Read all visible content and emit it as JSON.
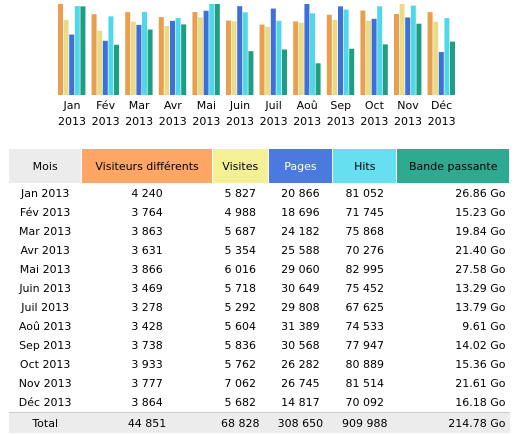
{
  "chart_data": {
    "type": "bar",
    "categories": [
      "Jan 2013",
      "Fév 2013",
      "Mar 2013",
      "Avr 2013",
      "Mai 2013",
      "Juin 2013",
      "Juil 2013",
      "Aoû 2013",
      "Sep 2013",
      "Oct 2013",
      "Nov 2013",
      "Déc 2013"
    ],
    "series": [
      {
        "name": "Visiteurs différents",
        "color": "#e8a050",
        "header_color": "#ffa566",
        "values": [
          4240,
          3764,
          3863,
          3631,
          3866,
          3469,
          3278,
          3428,
          3738,
          3933,
          3777,
          3864
        ],
        "value_labels": [
          "4 240",
          "3 764",
          "3 863",
          "3 631",
          "3 866",
          "3 469",
          "3 278",
          "3 428",
          "3 738",
          "3 933",
          "3 777",
          "3 864"
        ]
      },
      {
        "name": "Visites",
        "color": "#e8dc88",
        "header_color": "#f4f095",
        "values": [
          5827,
          4988,
          5687,
          5354,
          6016,
          5718,
          5292,
          5604,
          5836,
          5762,
          7062,
          5682
        ],
        "value_labels": [
          "5 827",
          "4 988",
          "5 687",
          "5 354",
          "6 016",
          "5 718",
          "5 292",
          "5 604",
          "5 836",
          "5 762",
          "7 062",
          "5 682"
        ]
      },
      {
        "name": "Pages",
        "color": "#3f6fd8",
        "header_color": "#4a7ae0",
        "values": [
          20866,
          18696,
          24182,
          25588,
          29060,
          30649,
          29808,
          31389,
          30568,
          26282,
          26745,
          14817
        ],
        "value_labels": [
          "20 866",
          "18 696",
          "24 182",
          "25 588",
          "29 060",
          "30 649",
          "29 808",
          "31 389",
          "30 568",
          "26 282",
          "26 745",
          "14 817"
        ]
      },
      {
        "name": "Hits",
        "color": "#50d8e8",
        "header_color": "#66e0f0",
        "values": [
          81052,
          71745,
          75868,
          70276,
          82995,
          75452,
          67625,
          74533,
          77947,
          80889,
          81514,
          70092
        ],
        "value_labels": [
          "81 052",
          "71 745",
          "75 868",
          "70 276",
          "82 995",
          "75 452",
          "67 625",
          "74 533",
          "77 947",
          "80 889",
          "81 514",
          "70 092"
        ]
      },
      {
        "name": "Bande passante",
        "color": "#1f9e82",
        "header_color": "#2eaa90",
        "values": [
          26.86,
          15.23,
          19.84,
          21.4,
          27.58,
          13.29,
          13.79,
          9.61,
          14.02,
          15.36,
          21.61,
          16.18
        ],
        "value_labels": [
          "26.86 Go",
          "15.23 Go",
          "19.84 Go",
          "21.40 Go",
          "27.58 Go",
          "13.29 Go",
          "13.79 Go",
          "9.61 Go",
          "14.02 Go",
          "15.36 Go",
          "21.61 Go",
          "16.18 Go"
        ]
      }
    ]
  },
  "table": {
    "month_header": "Mois",
    "total_label": "Total",
    "totals": [
      "44 851",
      "68 828",
      "308 650",
      "909 988",
      "214.78 Go"
    ]
  }
}
